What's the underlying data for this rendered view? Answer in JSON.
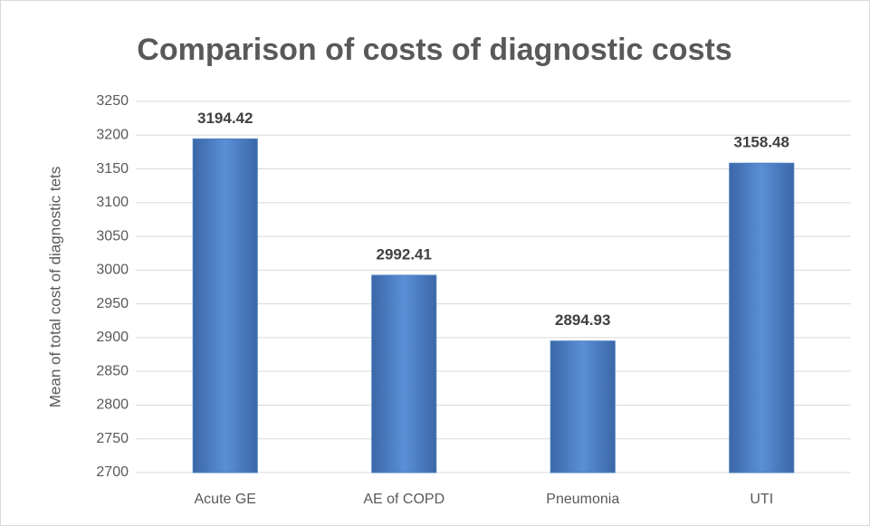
{
  "chart_data": {
    "type": "bar",
    "title": "Comparison of costs of diagnostic costs",
    "y_label": "Mean of total cost of diagnostic tets",
    "categories": [
      "Acute GE",
      "AE of COPD",
      "Pneumonia",
      "UTI"
    ],
    "values": [
      3194.42,
      2992.41,
      2894.93,
      3158.48
    ],
    "color": "#4f81bd",
    "ylim": [
      2700,
      3250
    ],
    "yticks": [
      2700,
      2750,
      2800,
      2850,
      2900,
      2950,
      3000,
      3050,
      3100,
      3150,
      3200,
      3250
    ],
    "grid": true
  }
}
